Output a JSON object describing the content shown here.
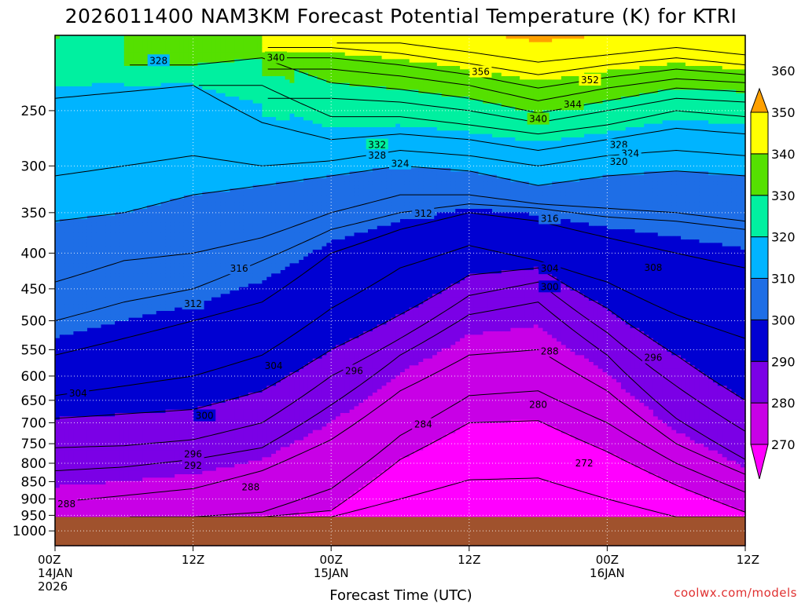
{
  "chart_data": {
    "type": "heatmap",
    "subtype": "filled contour time-height cross section",
    "title": "2026011400 NAM3KM Forecast Potential Temperature (K) for KTRI",
    "xlabel": "Forecast Time (UTC)",
    "ylabel": "",
    "credit": "coolwx.com/models",
    "x_ticks": [
      {
        "hour": 0,
        "lines": [
          "00Z",
          "14JAN",
          "2026"
        ]
      },
      {
        "hour": 12,
        "lines": [
          "12Z"
        ]
      },
      {
        "hour": 24,
        "lines": [
          "00Z",
          "15JAN"
        ]
      },
      {
        "hour": 36,
        "lines": [
          "12Z"
        ]
      },
      {
        "hour": 48,
        "lines": [
          "00Z",
          "16JAN"
        ]
      },
      {
        "hour": 60,
        "lines": [
          "12Z"
        ]
      }
    ],
    "xlim": [
      0,
      60
    ],
    "y_scale": "log",
    "y_units": "hPa",
    "ylim": [
      1050,
      195
    ],
    "y_ticks": [
      250,
      300,
      350,
      400,
      450,
      500,
      550,
      600,
      650,
      700,
      750,
      800,
      850,
      900,
      950,
      1000
    ],
    "grid": true,
    "terrain_pressure_hPa": 955,
    "terrain_color": "#a0522d",
    "colorbar": {
      "levels": [
        270,
        280,
        290,
        300,
        310,
        320,
        330,
        340,
        350,
        360
      ],
      "tick_labels": [
        "270",
        "280",
        "290",
        "300",
        "310",
        "320",
        "330",
        "340",
        "350",
        "360"
      ],
      "colors": [
        "#ff00ff",
        "#c800e6",
        "#7b00e6",
        "#0000d2",
        "#1e6ee6",
        "#00b4ff",
        "#00f0a0",
        "#55e000",
        "#ffff00",
        "#ffa000"
      ]
    },
    "contour_interval_K": 4,
    "isentrope_heights": {
      "hours": [
        0,
        6,
        12,
        18,
        24,
        30,
        36,
        42,
        48,
        54,
        60
      ],
      "series": [
        {
          "theta": 276,
          "values": [
            null,
            null,
            null,
            null,
            955,
            900,
            845,
            840,
            900,
            955,
            null
          ]
        },
        {
          "theta": 280,
          "values": [
            null,
            null,
            null,
            955,
            935,
            790,
            700,
            695,
            770,
            860,
            940
          ]
        },
        {
          "theta": 284,
          "values": [
            null,
            null,
            955,
            940,
            870,
            730,
            640,
            630,
            700,
            800,
            880
          ]
        },
        {
          "theta": 288,
          "values": [
            910,
            890,
            870,
            820,
            740,
            630,
            560,
            550,
            630,
            750,
            830
          ]
        },
        {
          "theta": 292,
          "values": [
            820,
            810,
            790,
            760,
            660,
            560,
            490,
            470,
            560,
            690,
            790
          ]
        },
        {
          "theta": 296,
          "values": [
            760,
            755,
            740,
            700,
            600,
            530,
            460,
            440,
            520,
            620,
            720
          ]
        },
        {
          "theta": 300,
          "values": [
            690,
            680,
            670,
            630,
            550,
            490,
            430,
            420,
            480,
            560,
            650
          ]
        },
        {
          "theta": 304,
          "values": [
            640,
            620,
            600,
            560,
            480,
            420,
            390,
            410,
            440,
            490,
            530
          ]
        },
        {
          "theta": 308,
          "values": [
            560,
            530,
            500,
            470,
            400,
            370,
            350,
            360,
            380,
            400,
            420
          ]
        },
        {
          "theta": 312,
          "values": [
            500,
            470,
            450,
            410,
            370,
            350,
            340,
            345,
            355,
            360,
            370
          ]
        },
        {
          "theta": 316,
          "values": [
            440,
            410,
            400,
            380,
            350,
            330,
            330,
            340,
            345,
            350,
            360
          ]
        },
        {
          "theta": 320,
          "values": [
            360,
            350,
            330,
            320,
            310,
            300,
            305,
            320,
            310,
            305,
            310
          ]
        },
        {
          "theta": 324,
          "values": [
            310,
            300,
            290,
            300,
            295,
            285,
            290,
            300,
            290,
            285,
            290
          ]
        },
        {
          "theta": 328,
          "values": [
            240,
            235,
            230,
            260,
            275,
            270,
            275,
            285,
            275,
            265,
            270
          ]
        },
        {
          "theta": 332,
          "values": [
            null,
            null,
            null,
            230,
            255,
            255,
            262,
            270,
            262,
            250,
            255
          ]
        },
        {
          "theta": 336,
          "values": [
            null,
            null,
            null,
            null,
            240,
            243,
            250,
            260,
            250,
            240,
            243
          ]
        },
        {
          "theta": 340,
          "values": [
            null,
            null,
            215,
            210,
            228,
            233,
            240,
            252,
            242,
            232,
            235
          ]
        },
        {
          "theta": 344,
          "values": [
            null,
            null,
            null,
            null,
            218,
            223,
            230,
            242,
            232,
            225,
            228
          ]
        },
        {
          "theta": 348,
          "values": [
            null,
            null,
            null,
            null,
            210,
            215,
            222,
            232,
            224,
            218,
            222
          ]
        },
        {
          "theta": 352,
          "values": [
            null,
            null,
            null,
            null,
            203,
            207,
            214,
            222,
            215,
            210,
            215
          ]
        },
        {
          "theta": 356,
          "values": [
            null,
            null,
            null,
            null,
            null,
            200,
            206,
            213,
            208,
            203,
            208
          ]
        }
      ]
    },
    "contour_labels": [
      {
        "text": "328",
        "hour": 9.0,
        "p": 212
      },
      {
        "text": "340",
        "hour": 19.2,
        "p": 210
      },
      {
        "text": "356",
        "hour": 37.0,
        "p": 220
      },
      {
        "text": "352",
        "hour": 46.5,
        "p": 226
      },
      {
        "text": "344",
        "hour": 45.0,
        "p": 245
      },
      {
        "text": "340",
        "hour": 42.0,
        "p": 257
      },
      {
        "text": "332",
        "hour": 28.0,
        "p": 280
      },
      {
        "text": "328",
        "hour": 28.0,
        "p": 290
      },
      {
        "text": "324",
        "hour": 30.0,
        "p": 298
      },
      {
        "text": "328",
        "hour": 49.0,
        "p": 280
      },
      {
        "text": "324",
        "hour": 50.0,
        "p": 288
      },
      {
        "text": "320",
        "hour": 49.0,
        "p": 296
      },
      {
        "text": "312",
        "hour": 32.0,
        "p": 351
      },
      {
        "text": "316",
        "hour": 43.0,
        "p": 357
      },
      {
        "text": "316",
        "hour": 16.0,
        "p": 421
      },
      {
        "text": "304",
        "hour": 43.0,
        "p": 421
      },
      {
        "text": "308",
        "hour": 52.0,
        "p": 420
      },
      {
        "text": "300",
        "hour": 43.0,
        "p": 447
      },
      {
        "text": "312",
        "hour": 12.0,
        "p": 473
      },
      {
        "text": "304",
        "hour": 19.0,
        "p": 580
      },
      {
        "text": "296",
        "hour": 26.0,
        "p": 590
      },
      {
        "text": "288",
        "hour": 43.0,
        "p": 553
      },
      {
        "text": "296",
        "hour": 52.0,
        "p": 565
      },
      {
        "text": "304",
        "hour": 2.0,
        "p": 635
      },
      {
        "text": "300",
        "hour": 13.0,
        "p": 684
      },
      {
        "text": "284",
        "hour": 32.0,
        "p": 704
      },
      {
        "text": "280",
        "hour": 42.0,
        "p": 660
      },
      {
        "text": "296",
        "hour": 12.0,
        "p": 777
      },
      {
        "text": "292",
        "hour": 12.0,
        "p": 806
      },
      {
        "text": "272",
        "hour": 46.0,
        "p": 800
      },
      {
        "text": "288",
        "hour": 17.0,
        "p": 866
      },
      {
        "text": "288",
        "hour": 1.0,
        "p": 915
      }
    ]
  }
}
